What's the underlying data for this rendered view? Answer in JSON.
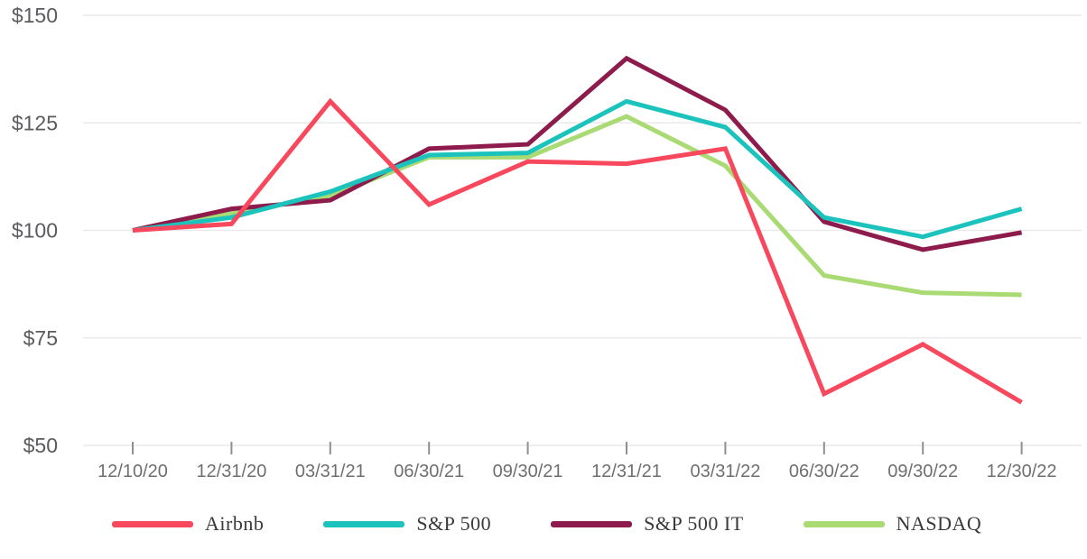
{
  "chart_data": {
    "type": "line",
    "x_categories": [
      "12/10/20",
      "12/31/20",
      "03/31/21",
      "06/30/21",
      "09/30/21",
      "12/31/21",
      "03/31/22",
      "06/30/22",
      "09/30/22",
      "12/30/22"
    ],
    "series": [
      {
        "name": "Airbnb",
        "color": "#F8485E",
        "values": [
          100,
          101.5,
          130,
          106,
          116,
          115.5,
          119,
          62,
          73.5,
          60
        ]
      },
      {
        "name": "S&P 500",
        "color": "#1BC3BC",
        "values": [
          100,
          103,
          109,
          117.5,
          118,
          130,
          124,
          103,
          98.5,
          105
        ]
      },
      {
        "name": "S&P 500 IT",
        "color": "#8D1B4B",
        "values": [
          100,
          105,
          107,
          119,
          120,
          140,
          128,
          102,
          95.5,
          99.5
        ]
      },
      {
        "name": "NASDAQ",
        "color": "#A9DA74",
        "values": [
          100,
          104,
          108,
          117,
          117,
          126.5,
          115,
          89.5,
          85.5,
          85
        ]
      }
    ],
    "y_ticks": [
      {
        "value": 150,
        "label": "$150"
      },
      {
        "value": 125,
        "label": "$125"
      },
      {
        "value": 100,
        "label": "$100"
      },
      {
        "value": 75,
        "label": "$75"
      },
      {
        "value": 50,
        "label": "$50"
      }
    ],
    "ylim": [
      50,
      150
    ],
    "grid": "horizontal-only",
    "legend_position": "bottom",
    "styles": {
      "gridline_color": "#e9e9eb",
      "tick_color": "#8f9093",
      "line_width": 5
    }
  }
}
